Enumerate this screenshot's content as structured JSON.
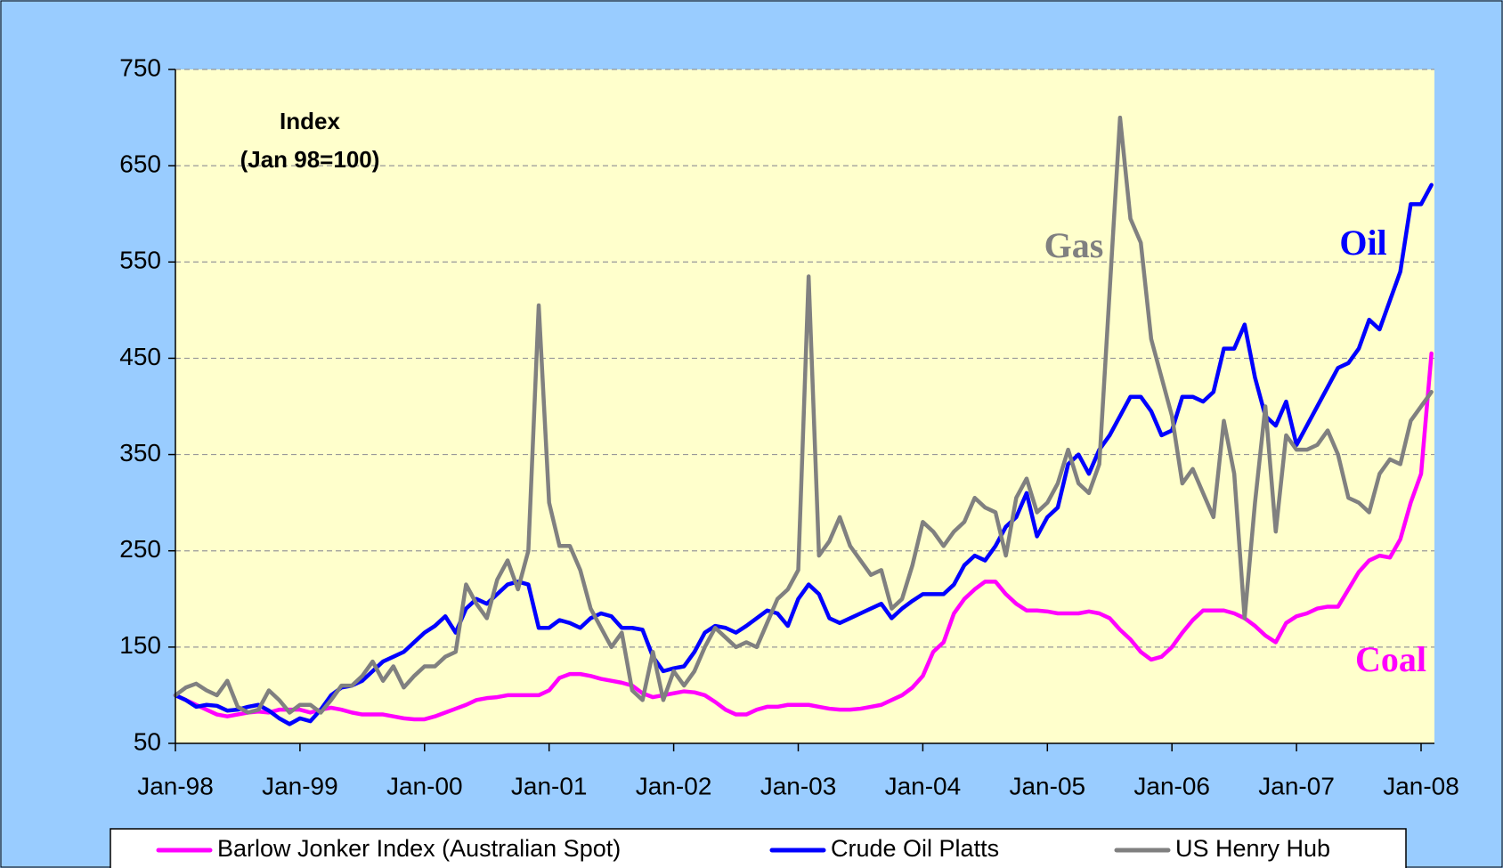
{
  "chart_data": {
    "type": "line",
    "annotations": [
      {
        "text": "Index",
        "color": "#000000"
      },
      {
        "text": "(Jan 98=100)",
        "color": "#000000"
      },
      {
        "text": "Gas",
        "color": "#808080"
      },
      {
        "text": "Oil",
        "color": "#0000ff"
      },
      {
        "text": "Coal",
        "color": "#ff00ff"
      }
    ],
    "categories": [
      "Jan-98",
      null,
      null,
      null,
      null,
      null,
      null,
      null,
      null,
      null,
      null,
      null,
      "Jan-99",
      null,
      null,
      null,
      null,
      null,
      null,
      null,
      null,
      null,
      null,
      null,
      "Jan-00",
      null,
      null,
      null,
      null,
      null,
      null,
      null,
      null,
      null,
      null,
      null,
      "Jan-01",
      null,
      null,
      null,
      null,
      null,
      null,
      null,
      null,
      null,
      null,
      null,
      "Jan-02",
      null,
      null,
      null,
      null,
      null,
      null,
      null,
      null,
      null,
      null,
      null,
      "Jan-03",
      null,
      null,
      null,
      null,
      null,
      null,
      null,
      null,
      null,
      null,
      null,
      "Jan-04",
      null,
      null,
      null,
      null,
      null,
      null,
      null,
      null,
      null,
      null,
      null,
      "Jan-05",
      null,
      null,
      null,
      null,
      null,
      null,
      null,
      null,
      null,
      null,
      null,
      "Jan-06",
      null,
      null,
      null,
      null,
      null,
      null,
      null,
      null,
      null,
      null,
      null,
      "Jan-07",
      null,
      null,
      null,
      null,
      null,
      null,
      null,
      null,
      null,
      null,
      null,
      "Jan-08",
      null
    ],
    "series": [
      {
        "name": "Barlow Jonker Index (Australian Spot)",
        "color": "#ff00ff",
        "values": [
          100,
          95,
          90,
          85,
          80,
          78,
          80,
          82,
          83,
          82,
          85,
          85,
          85,
          82,
          85,
          87,
          85,
          82,
          80,
          80,
          80,
          78,
          76,
          75,
          75,
          78,
          82,
          86,
          90,
          95,
          97,
          98,
          100,
          100,
          100,
          100,
          105,
          118,
          122,
          122,
          120,
          117,
          115,
          113,
          110,
          102,
          98,
          100,
          102,
          104,
          103,
          100,
          93,
          85,
          80,
          80,
          85,
          88,
          88,
          90,
          90,
          90,
          88,
          86,
          85,
          85,
          86,
          88,
          90,
          95,
          100,
          108,
          120,
          145,
          155,
          185,
          200,
          210,
          218,
          218,
          205,
          195,
          188,
          188,
          187,
          185,
          185,
          185,
          187,
          185,
          180,
          168,
          158,
          145,
          137,
          140,
          150,
          165,
          178,
          188,
          188,
          188,
          185,
          180,
          172,
          162,
          155,
          175,
          182,
          185,
          190,
          192,
          192,
          210,
          228,
          240,
          245,
          243,
          262,
          300,
          330,
          455
        ]
      },
      {
        "name": "Crude Oil Platts",
        "color": "#0000ff",
        "values": [
          100,
          95,
          88,
          90,
          89,
          84,
          85,
          88,
          90,
          84,
          76,
          70,
          76,
          73,
          85,
          100,
          108,
          110,
          115,
          125,
          135,
          140,
          145,
          155,
          165,
          172,
          182,
          165,
          190,
          200,
          195,
          205,
          215,
          218,
          215,
          170,
          170,
          178,
          175,
          170,
          180,
          185,
          182,
          170,
          170,
          168,
          140,
          125,
          128,
          130,
          145,
          165,
          172,
          170,
          165,
          172,
          180,
          188,
          185,
          172,
          200,
          215,
          205,
          180,
          175,
          180,
          185,
          190,
          195,
          180,
          190,
          198,
          205,
          205,
          205,
          215,
          235,
          245,
          240,
          255,
          275,
          285,
          310,
          265,
          285,
          295,
          340,
          350,
          330,
          355,
          370,
          390,
          410,
          410,
          395,
          370,
          375,
          410,
          410,
          405,
          415,
          460,
          460,
          485,
          430,
          390,
          380,
          405,
          360,
          380,
          400,
          420,
          440,
          445,
          460,
          490,
          480,
          510,
          540,
          610,
          610,
          630
        ]
      },
      {
        "name": "US Henry Hub",
        "color": "#808080",
        "values": [
          100,
          108,
          112,
          105,
          100,
          115,
          88,
          82,
          85,
          105,
          95,
          82,
          90,
          90,
          82,
          95,
          110,
          110,
          120,
          135,
          115,
          130,
          108,
          120,
          130,
          130,
          140,
          145,
          215,
          195,
          180,
          220,
          240,
          210,
          250,
          505,
          300,
          255,
          255,
          230,
          190,
          170,
          150,
          165,
          105,
          95,
          145,
          95,
          125,
          110,
          125,
          150,
          170,
          160,
          150,
          155,
          150,
          175,
          200,
          210,
          230,
          535,
          245,
          260,
          285,
          255,
          240,
          225,
          230,
          190,
          200,
          235,
          280,
          270,
          255,
          270,
          280,
          305,
          295,
          290,
          245,
          305,
          325,
          290,
          300,
          320,
          355,
          320,
          310,
          340,
          520,
          700,
          595,
          570,
          470,
          430,
          390,
          320,
          335,
          310,
          285,
          385,
          330,
          180,
          300,
          400,
          270,
          370,
          355,
          355,
          360,
          375,
          350,
          305,
          300,
          290,
          330,
          345,
          340,
          385,
          400,
          415
        ]
      }
    ],
    "ylim": [
      50,
      750
    ],
    "yticks": [
      50,
      150,
      250,
      350,
      450,
      550,
      650,
      750
    ],
    "grid": true,
    "legend": "bottom"
  }
}
